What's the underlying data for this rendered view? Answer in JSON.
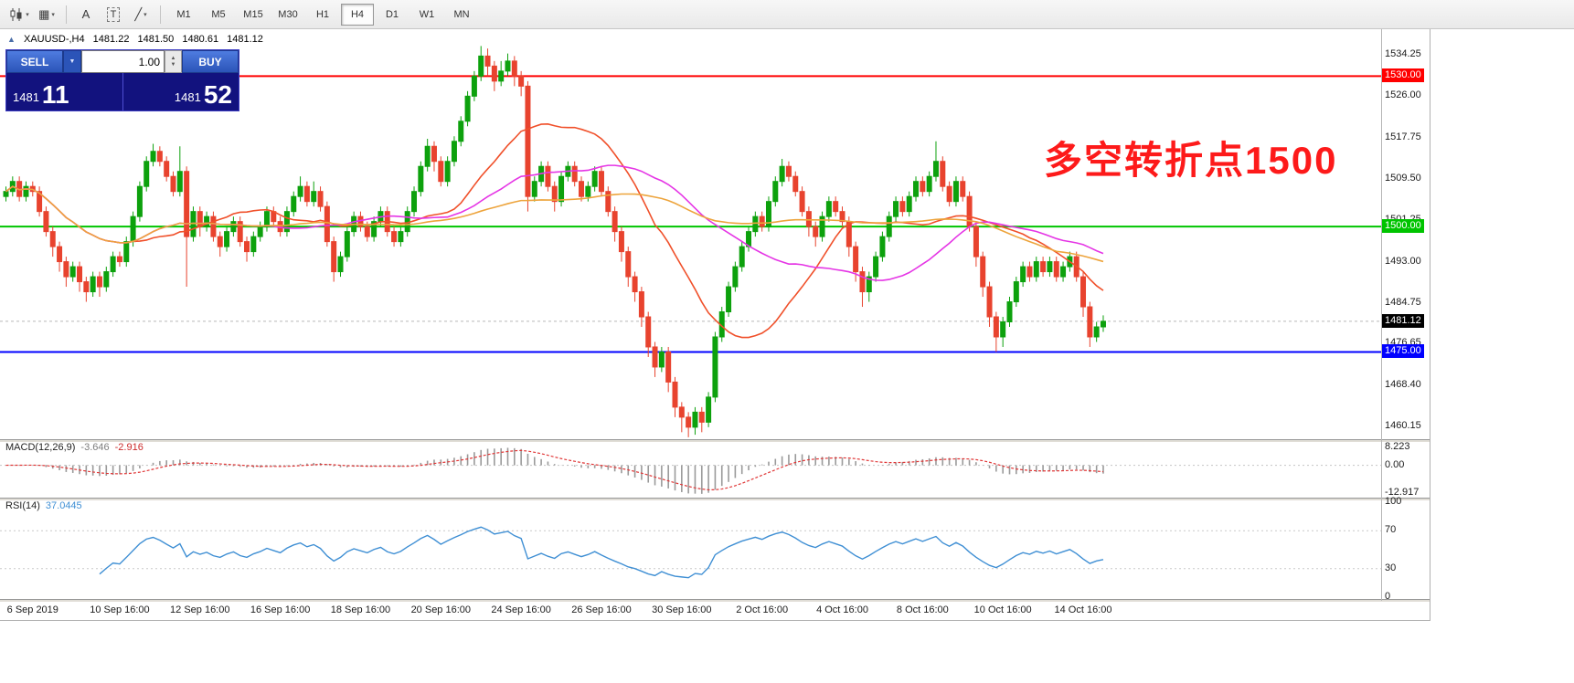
{
  "toolbar": {
    "text_tool_label": "A",
    "template_tool_label": "T",
    "timeframes": [
      {
        "label": "M1",
        "active": false
      },
      {
        "label": "M5",
        "active": false
      },
      {
        "label": "M15",
        "active": false
      },
      {
        "label": "M30",
        "active": false
      },
      {
        "label": "H1",
        "active": false
      },
      {
        "label": "H4",
        "active": true
      },
      {
        "label": "D1",
        "active": false
      },
      {
        "label": "W1",
        "active": false
      },
      {
        "label": "MN",
        "active": false
      }
    ]
  },
  "chart_header": {
    "symbol_period": "XAUUSD-,H4",
    "open": "1481.22",
    "high": "1481.50",
    "low": "1480.61",
    "close": "1481.12"
  },
  "trade_panel": {
    "sell_label": "SELL",
    "buy_label": "BUY",
    "volume": "1.00",
    "bid_small": "1481",
    "bid_big": "11",
    "ask_small": "1481",
    "ask_big": "52"
  },
  "annotation": {
    "text": "多空转折点1500",
    "color": "#fd1a1a"
  },
  "price_axis": {
    "labels": [
      "1534.25",
      "1526.00",
      "1517.75",
      "1509.50",
      "1501.25",
      "1493.00",
      "1484.75",
      "1476.65",
      "1468.40",
      "1460.15"
    ]
  },
  "levels": [
    {
      "price": 1530.0,
      "label": "1530.00",
      "color": "#ff0000"
    },
    {
      "price": 1500.0,
      "label": "1500.00",
      "color": "#00c400"
    },
    {
      "price": 1475.0,
      "label": "1475.00",
      "color": "#0000ff"
    }
  ],
  "bid_marker": {
    "price": 1481.12,
    "label": "1481.12",
    "color": "#000000"
  },
  "time_axis": {
    "labels": [
      {
        "text": "6 Sep 2019",
        "index": 4
      },
      {
        "text": "10 Sep 16:00",
        "index": 17
      },
      {
        "text": "12 Sep 16:00",
        "index": 29
      },
      {
        "text": "16 Sep 16:00",
        "index": 41
      },
      {
        "text": "18 Sep 16:00",
        "index": 53
      },
      {
        "text": "20 Sep 16:00",
        "index": 65
      },
      {
        "text": "24 Sep 16:00",
        "index": 77
      },
      {
        "text": "26 Sep 16:00",
        "index": 89
      },
      {
        "text": "30 Sep 16:00",
        "index": 101
      },
      {
        "text": "2 Oct 16:00",
        "index": 113
      },
      {
        "text": "4 Oct 16:00",
        "index": 125
      },
      {
        "text": "8 Oct 16:00",
        "index": 137
      },
      {
        "text": "10 Oct 16:00",
        "index": 149
      },
      {
        "text": "14 Oct 16:00",
        "index": 161
      }
    ]
  },
  "macd_panel": {
    "title": "MACD(12,26,9)",
    "main_value": "-3.646",
    "signal_value": "-2.916",
    "axis_labels": [
      "8.223",
      "0.00",
      "-12.917"
    ],
    "axis_values": [
      8.223,
      0,
      -12.917
    ],
    "histogram_color": "#9a9a9a",
    "signal_color": "#e03636"
  },
  "rsi_panel": {
    "title": "RSI(14)",
    "value": "37.0445",
    "axis_labels": [
      "100",
      "70",
      "30",
      "0"
    ],
    "axis_values": [
      100,
      70,
      30,
      0
    ],
    "levels": [
      70,
      30
    ],
    "line_color": "#3f8fd4"
  },
  "chart_data": {
    "type": "candlestick",
    "symbol": "XAUUSD-",
    "period": "H4",
    "bull_color": "#0da10d",
    "bear_color": "#e8432e",
    "moving_averages": [
      {
        "name": "fast-ma",
        "period": 20,
        "color": "#f0502a"
      },
      {
        "name": "medium-ma",
        "period": 40,
        "color": "#e535e5"
      },
      {
        "name": "slow-ma",
        "period": 80,
        "color": "#eda43c"
      }
    ],
    "candles": [
      [
        1506,
        1508,
        1505,
        1507
      ],
      [
        1507,
        1510,
        1506,
        1509
      ],
      [
        1509,
        1510,
        1505,
        1506
      ],
      [
        1506,
        1509,
        1505,
        1508
      ],
      [
        1508,
        1509,
        1506,
        1507
      ],
      [
        1507,
        1508,
        1502,
        1503
      ],
      [
        1503,
        1504,
        1498,
        1499
      ],
      [
        1499,
        1500,
        1494,
        1496
      ],
      [
        1496,
        1497,
        1491,
        1493
      ],
      [
        1493,
        1494,
        1488,
        1490
      ],
      [
        1490,
        1493,
        1489,
        1492
      ],
      [
        1492,
        1493,
        1487,
        1489
      ],
      [
        1489,
        1490,
        1485,
        1487
      ],
      [
        1487,
        1491,
        1486,
        1490
      ],
      [
        1490,
        1491,
        1486,
        1488
      ],
      [
        1488,
        1492,
        1487,
        1491
      ],
      [
        1491,
        1495,
        1490,
        1494
      ],
      [
        1494,
        1495,
        1492,
        1493
      ],
      [
        1493,
        1498,
        1492,
        1497
      ],
      [
        1497,
        1503,
        1496,
        1502
      ],
      [
        1502,
        1509,
        1501,
        1508
      ],
      [
        1508,
        1514,
        1507,
        1513
      ],
      [
        1513,
        1516.5,
        1512,
        1515
      ],
      [
        1515,
        1516,
        1512,
        1513
      ],
      [
        1513,
        1514,
        1509,
        1510
      ],
      [
        1510,
        1511,
        1506,
        1507
      ],
      [
        1507,
        1516,
        1506,
        1511
      ],
      [
        1511,
        1512,
        1488,
        1498
      ],
      [
        1498,
        1504,
        1497,
        1503
      ],
      [
        1503,
        1504,
        1498,
        1500
      ],
      [
        1500,
        1503,
        1499,
        1502
      ],
      [
        1502,
        1503,
        1497,
        1498
      ],
      [
        1498,
        1499,
        1494,
        1496
      ],
      [
        1496,
        1500,
        1495,
        1499
      ],
      [
        1499,
        1502,
        1498,
        1501
      ],
      [
        1501,
        1502,
        1496,
        1497
      ],
      [
        1497,
        1498,
        1493,
        1495
      ],
      [
        1495,
        1499,
        1494,
        1498
      ],
      [
        1498,
        1501,
        1497,
        1500
      ],
      [
        1500,
        1504,
        1499,
        1503
      ],
      [
        1503,
        1504,
        1500,
        1501
      ],
      [
        1501,
        1502,
        1498,
        1499
      ],
      [
        1499,
        1504,
        1498,
        1503
      ],
      [
        1503,
        1507,
        1502,
        1506
      ],
      [
        1506,
        1510,
        1505,
        1508
      ],
      [
        1508,
        1509,
        1504,
        1505
      ],
      [
        1505,
        1509,
        1504,
        1507
      ],
      [
        1507,
        1508,
        1503,
        1504
      ],
      [
        1504,
        1505,
        1496,
        1497
      ],
      [
        1497,
        1498,
        1489,
        1491
      ],
      [
        1491,
        1495,
        1490,
        1494
      ],
      [
        1494,
        1500,
        1493,
        1499
      ],
      [
        1499,
        1503,
        1498,
        1502
      ],
      [
        1502,
        1503,
        1499,
        1500
      ],
      [
        1500,
        1501,
        1497,
        1498
      ],
      [
        1498,
        1502,
        1497,
        1501
      ],
      [
        1501,
        1504,
        1500,
        1503
      ],
      [
        1503,
        1504,
        1498,
        1499
      ],
      [
        1499,
        1500,
        1496,
        1497
      ],
      [
        1497,
        1500,
        1496,
        1499
      ],
      [
        1499,
        1504,
        1498,
        1503
      ],
      [
        1503,
        1508,
        1502,
        1507
      ],
      [
        1507,
        1513,
        1506,
        1512
      ],
      [
        1512,
        1517.5,
        1511,
        1516
      ],
      [
        1516,
        1517,
        1511,
        1513
      ],
      [
        1513,
        1514,
        1508,
        1509
      ],
      [
        1509,
        1514,
        1508,
        1513
      ],
      [
        1513,
        1518,
        1512,
        1517
      ],
      [
        1517,
        1522,
        1516,
        1521
      ],
      [
        1521,
        1527,
        1520,
        1526
      ],
      [
        1526,
        1531,
        1525,
        1530
      ],
      [
        1530,
        1536,
        1529,
        1534
      ],
      [
        1534,
        1535.5,
        1530,
        1532
      ],
      [
        1532,
        1533,
        1527,
        1529
      ],
      [
        1529,
        1533,
        1528,
        1531
      ],
      [
        1531,
        1534.5,
        1530,
        1533
      ],
      [
        1533,
        1534,
        1528,
        1530
      ],
      [
        1530,
        1531,
        1526,
        1528
      ],
      [
        1528,
        1529,
        1503,
        1506
      ],
      [
        1506,
        1510,
        1505,
        1509
      ],
      [
        1509,
        1513,
        1508,
        1512
      ],
      [
        1512,
        1513,
        1507,
        1508
      ],
      [
        1508,
        1509,
        1503,
        1505
      ],
      [
        1505,
        1511,
        1504,
        1510
      ],
      [
        1510,
        1513,
        1509,
        1512
      ],
      [
        1512,
        1513,
        1508,
        1509
      ],
      [
        1509,
        1510,
        1505,
        1506
      ],
      [
        1506,
        1509,
        1505,
        1508
      ],
      [
        1508,
        1512,
        1507,
        1511
      ],
      [
        1511,
        1512,
        1506,
        1507
      ],
      [
        1507,
        1508,
        1502,
        1503
      ],
      [
        1503,
        1504,
        1497,
        1499
      ],
      [
        1499,
        1500,
        1493,
        1495
      ],
      [
        1495,
        1496,
        1488,
        1490
      ],
      [
        1490,
        1491,
        1485,
        1487
      ],
      [
        1487,
        1488,
        1480,
        1482
      ],
      [
        1482,
        1483,
        1474,
        1476
      ],
      [
        1476,
        1477,
        1470,
        1472
      ],
      [
        1472,
        1476,
        1471,
        1475
      ],
      [
        1475,
        1476,
        1467,
        1469
      ],
      [
        1469,
        1470,
        1462,
        1464
      ],
      [
        1464,
        1465,
        1459,
        1462
      ],
      [
        1462,
        1463,
        1458,
        1460
      ],
      [
        1460,
        1464,
        1458.5,
        1463
      ],
      [
        1463,
        1464,
        1459,
        1461
      ],
      [
        1461,
        1467,
        1460,
        1466
      ],
      [
        1466,
        1479,
        1465,
        1478
      ],
      [
        1478,
        1484,
        1477,
        1483
      ],
      [
        1483,
        1489,
        1482,
        1488
      ],
      [
        1488,
        1493,
        1487,
        1492
      ],
      [
        1492,
        1497,
        1491,
        1496
      ],
      [
        1496,
        1500,
        1495,
        1499
      ],
      [
        1499,
        1503,
        1498,
        1502
      ],
      [
        1502,
        1503,
        1499,
        1500
      ],
      [
        1500,
        1506,
        1499,
        1505
      ],
      [
        1505,
        1510,
        1504,
        1509
      ],
      [
        1509,
        1513.5,
        1508,
        1512
      ],
      [
        1512,
        1513,
        1509,
        1510
      ],
      [
        1510,
        1511,
        1506,
        1507
      ],
      [
        1507,
        1508,
        1502,
        1503
      ],
      [
        1503,
        1504,
        1498,
        1500
      ],
      [
        1500,
        1501,
        1496,
        1498
      ],
      [
        1498,
        1503,
        1497,
        1502
      ],
      [
        1502,
        1506,
        1501,
        1505
      ],
      [
        1505,
        1506,
        1502,
        1503
      ],
      [
        1503,
        1504,
        1500,
        1501
      ],
      [
        1501,
        1502,
        1494,
        1496
      ],
      [
        1496,
        1497,
        1489,
        1491
      ],
      [
        1491,
        1492,
        1484,
        1487
      ],
      [
        1487,
        1491,
        1485,
        1490
      ],
      [
        1490,
        1495,
        1489,
        1494
      ],
      [
        1494,
        1499,
        1493,
        1498
      ],
      [
        1498,
        1503,
        1497,
        1502
      ],
      [
        1502,
        1506,
        1501,
        1505
      ],
      [
        1505,
        1506,
        1502,
        1503
      ],
      [
        1503,
        1507,
        1502,
        1506
      ],
      [
        1506,
        1510,
        1505,
        1509
      ],
      [
        1509,
        1510,
        1506,
        1507
      ],
      [
        1507,
        1511,
        1506,
        1510
      ],
      [
        1510,
        1517,
        1509,
        1513
      ],
      [
        1513,
        1514,
        1507,
        1508
      ],
      [
        1508,
        1509,
        1504,
        1505
      ],
      [
        1505,
        1510,
        1504,
        1509
      ],
      [
        1509,
        1510,
        1505,
        1506
      ],
      [
        1506,
        1507,
        1499,
        1500
      ],
      [
        1500,
        1501,
        1492,
        1494
      ],
      [
        1494,
        1495,
        1486,
        1488
      ],
      [
        1488,
        1489,
        1480,
        1482
      ],
      [
        1482,
        1483,
        1475,
        1478
      ],
      [
        1478,
        1482,
        1476,
        1481
      ],
      [
        1481,
        1486,
        1480,
        1485
      ],
      [
        1485,
        1490,
        1484,
        1489
      ],
      [
        1489,
        1493,
        1488,
        1492
      ],
      [
        1492,
        1493,
        1489,
        1490
      ],
      [
        1490,
        1494,
        1489,
        1493
      ],
      [
        1493,
        1494,
        1490,
        1491
      ],
      [
        1491,
        1494,
        1490,
        1493
      ],
      [
        1493,
        1494,
        1489,
        1490
      ],
      [
        1490,
        1493,
        1489,
        1492
      ],
      [
        1492,
        1495,
        1491,
        1494
      ],
      [
        1494,
        1495,
        1489,
        1490
      ],
      [
        1490,
        1491,
        1482,
        1484
      ],
      [
        1484,
        1485,
        1476,
        1478
      ],
      [
        1478,
        1481,
        1477,
        1480
      ],
      [
        1480,
        1482.3,
        1479,
        1481.12
      ]
    ]
  }
}
